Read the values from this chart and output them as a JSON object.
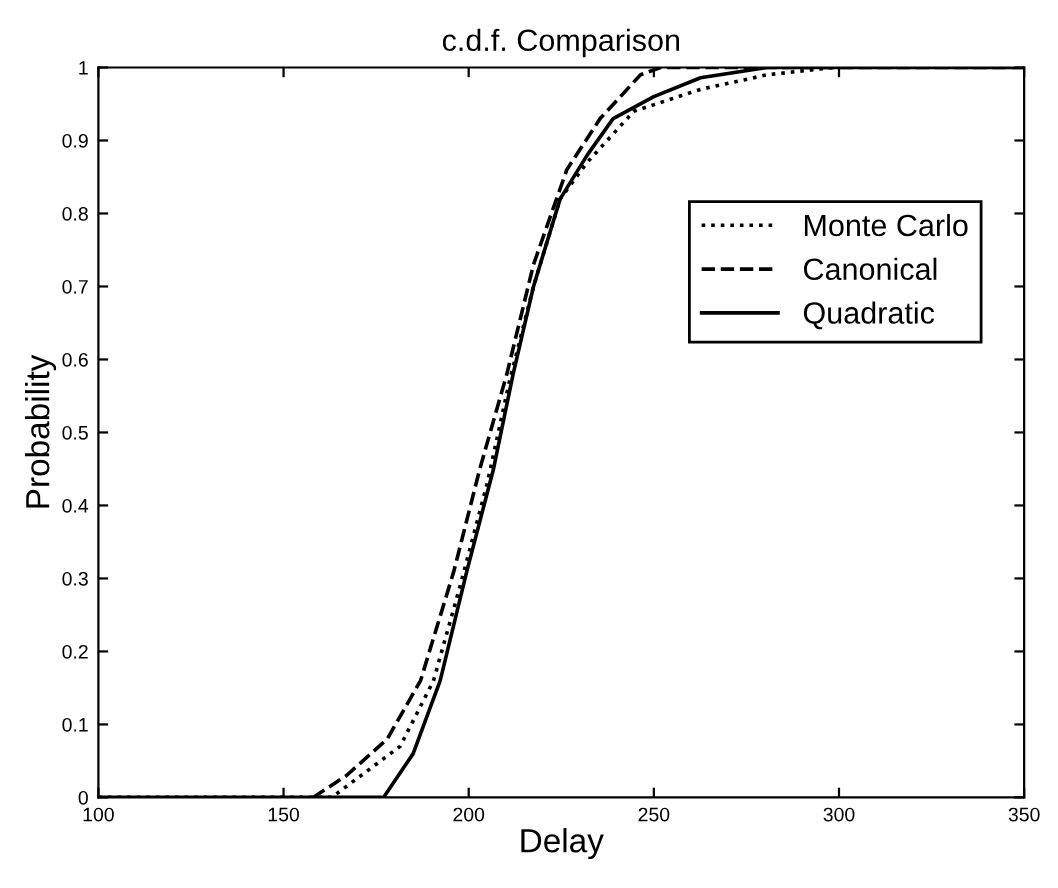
{
  "chart_data": {
    "type": "line",
    "title": "c.d.f. Comparison",
    "xlabel": "Delay",
    "ylabel": "Probability",
    "series": [
      {
        "name": "Monte Carlo",
        "color": "#000000",
        "line_style": "dotted",
        "x": [
          100,
          163,
          181.5,
          190.5,
          197.7,
          205,
          211,
          217.5,
          224.7,
          232,
          244.6,
          262.6,
          280.6,
          298.6
        ],
        "values": [
          0,
          0,
          0.07,
          0.16,
          0.29,
          0.43,
          0.57,
          0.7,
          0.82,
          0.87,
          0.94,
          0.97,
          0.99,
          1
        ]
      },
      {
        "name": "Canonical",
        "color": "#000000",
        "line_style": "dashed",
        "x": [
          158,
          167,
          178,
          187,
          196,
          203,
          210.3,
          217.5,
          226.5,
          235.5,
          246.4,
          251.8,
          350
        ],
        "values": [
          0,
          0.03,
          0.08,
          0.16,
          0.31,
          0.45,
          0.58,
          0.73,
          0.86,
          0.93,
          0.99,
          1,
          1
        ]
      },
      {
        "name": "Quadratic",
        "color": "#000000",
        "line_style": "solid",
        "x": [
          100,
          177,
          185,
          192.3,
          199.5,
          206.7,
          212,
          217.5,
          224.7,
          232,
          239,
          250,
          262.6,
          280.6,
          350
        ],
        "values": [
          0,
          0,
          0.06,
          0.16,
          0.31,
          0.45,
          0.58,
          0.7,
          0.82,
          0.88,
          0.93,
          0.96,
          0.986,
          1,
          1
        ]
      }
    ],
    "xlim": [
      100,
      350
    ],
    "xticks": [
      100,
      150,
      200,
      250,
      300,
      350
    ],
    "ylim": [
      0,
      1
    ],
    "yticks": [
      0,
      0.1,
      0.2,
      0.3,
      0.4,
      0.5,
      0.6,
      0.7,
      0.8,
      0.9,
      1
    ],
    "grid": false,
    "legend": "right",
    "marker": "none"
  }
}
